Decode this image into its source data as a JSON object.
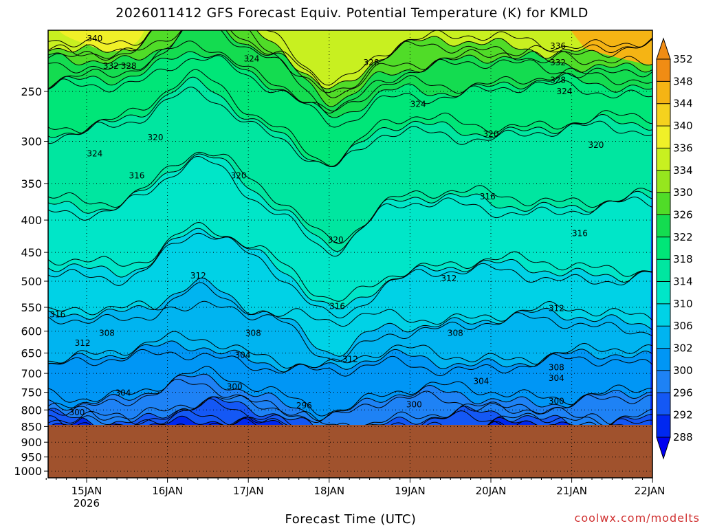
{
  "title": "2026011412 GFS Forecast Equiv. Potential Temperature (K) for KMLD",
  "xlabel": "Forecast Time (UTC)",
  "credit": "coolwx.com/modelts",
  "chart_data": {
    "type": "heatmap",
    "title": "2026011412 GFS Forecast Equiv. Potential Temperature (K) for KMLD",
    "xlabel": "Forecast Time (UTC)",
    "ylabel": "",
    "x_ticks": [
      {
        "label": "15JAN",
        "sub": "2026",
        "day": 15
      },
      {
        "label": "16JAN",
        "sub": "",
        "day": 16
      },
      {
        "label": "17JAN",
        "sub": "",
        "day": 17
      },
      {
        "label": "18JAN",
        "sub": "",
        "day": 18
      },
      {
        "label": "19JAN",
        "sub": "",
        "day": 19
      },
      {
        "label": "20JAN",
        "sub": "",
        "day": 20
      },
      {
        "label": "21JAN",
        "sub": "",
        "day": 21
      },
      {
        "label": "22JAN",
        "sub": "",
        "day": 22
      }
    ],
    "xlim": [
      "2026-01-14T12:00",
      "2026-01-22T00:00"
    ],
    "y_ticks": [
      250,
      300,
      350,
      400,
      450,
      500,
      550,
      600,
      650,
      700,
      750,
      800,
      850,
      900,
      950,
      1000
    ],
    "ylim": [
      200,
      1025
    ],
    "y_scale": "log",
    "y_inverted": true,
    "surface_pressure_hPa": 845,
    "colorbar": {
      "levels": [
        288,
        292,
        296,
        300,
        302,
        306,
        310,
        314,
        318,
        322,
        326,
        330,
        334,
        336,
        340,
        344,
        348,
        352
      ],
      "colors": [
        "#0000f0",
        "#0028f0",
        "#1458f5",
        "#1e82f5",
        "#0096f5",
        "#00b4f0",
        "#00d2e6",
        "#00e6c8",
        "#00e6a0",
        "#00e678",
        "#14dc50",
        "#50dc28",
        "#96e61e",
        "#c8f020",
        "#f0f028",
        "#f5d21e",
        "#f5b414",
        "#f08c14"
      ]
    },
    "grid": true,
    "legend": "right-colorbar",
    "contour_levels": [
      {
        "level": 296,
        "pressure": 855
      },
      {
        "level": 300,
        "pressure": 825
      },
      {
        "level": 304,
        "pressure": 765
      },
      {
        "level": 308,
        "pressure": 665
      },
      {
        "level": 312,
        "pressure": 575
      },
      {
        "level": 316,
        "pressure": 480
      },
      {
        "level": 320,
        "pressure": 375
      },
      {
        "level": 324,
        "pressure": 285
      },
      {
        "level": 328,
        "pressure": 245
      },
      {
        "level": 332,
        "pressure": 225
      },
      {
        "level": 336,
        "pressure": 212
      }
    ],
    "contour_labels": [
      {
        "text": "340",
        "day": 15.1,
        "p": 206
      },
      {
        "text": "332",
        "day": 15.3,
        "p": 228
      },
      {
        "text": "328",
        "day": 15.52,
        "p": 228
      },
      {
        "text": "324",
        "day": 15.1,
        "p": 314
      },
      {
        "text": "320",
        "day": 15.85,
        "p": 296
      },
      {
        "text": "316",
        "day": 15.62,
        "p": 340
      },
      {
        "text": "324",
        "day": 17.04,
        "p": 222
      },
      {
        "text": "320",
        "day": 16.88,
        "p": 340
      },
      {
        "text": "328",
        "day": 18.52,
        "p": 225
      },
      {
        "text": "324",
        "day": 19.1,
        "p": 262
      },
      {
        "text": "320",
        "day": 18.08,
        "p": 430
      },
      {
        "text": "320",
        "day": 20.0,
        "p": 292
      },
      {
        "text": "316",
        "day": 19.96,
        "p": 367
      },
      {
        "text": "336",
        "day": 20.83,
        "p": 212
      },
      {
        "text": "332",
        "day": 20.83,
        "p": 225
      },
      {
        "text": "328",
        "day": 20.83,
        "p": 240
      },
      {
        "text": "324",
        "day": 20.91,
        "p": 250
      },
      {
        "text": "320",
        "day": 21.3,
        "p": 304
      },
      {
        "text": "316",
        "day": 21.1,
        "p": 420
      },
      {
        "text": "316",
        "day": 14.64,
        "p": 565
      },
      {
        "text": "312",
        "day": 14.95,
        "p": 627
      },
      {
        "text": "308",
        "day": 15.25,
        "p": 604
      },
      {
        "text": "312",
        "day": 16.38,
        "p": 490
      },
      {
        "text": "308",
        "day": 17.06,
        "p": 604
      },
      {
        "text": "304",
        "day": 16.93,
        "p": 655
      },
      {
        "text": "316",
        "day": 18.1,
        "p": 548
      },
      {
        "text": "312",
        "day": 18.26,
        "p": 665
      },
      {
        "text": "312",
        "day": 19.48,
        "p": 495
      },
      {
        "text": "308",
        "day": 19.56,
        "p": 604
      },
      {
        "text": "312",
        "day": 20.81,
        "p": 552
      },
      {
        "text": "308",
        "day": 20.81,
        "p": 685
      },
      {
        "text": "304",
        "day": 19.88,
        "p": 720
      },
      {
        "text": "304",
        "day": 20.81,
        "p": 712
      },
      {
        "text": "304",
        "day": 15.45,
        "p": 752
      },
      {
        "text": "300",
        "day": 16.83,
        "p": 735
      },
      {
        "text": "300",
        "day": 14.88,
        "p": 808
      },
      {
        "text": "296",
        "day": 17.69,
        "p": 788
      },
      {
        "text": "300",
        "day": 19.05,
        "p": 785
      },
      {
        "text": "300",
        "day": 20.81,
        "p": 775
      }
    ]
  }
}
